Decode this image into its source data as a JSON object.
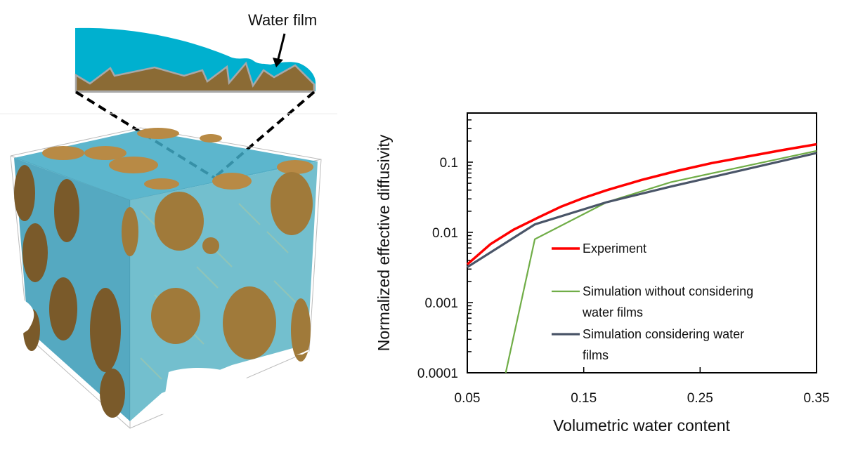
{
  "illustration": {
    "callout_label": "Water film",
    "colors": {
      "water": "#00b0cf",
      "solid": "#8b6b35",
      "solid_outline": "#a8a8a8",
      "grain": "#b88a45",
      "grain_dark": "#7a5a2a",
      "pore_film": "#3aa8c8"
    }
  },
  "chart_data": {
    "type": "line",
    "title": "",
    "xlabel": "Volumetric water content",
    "ylabel": "Normalized effective diffusivity",
    "xlim": [
      0.05,
      0.35
    ],
    "ylim": [
      0.0001,
      0.5
    ],
    "yscale": "log",
    "x_ticks": [
      "0.05",
      "0.15",
      "0.25",
      "0.35"
    ],
    "y_ticks": [
      "0.0001",
      "0.001",
      "0.01",
      "0.1"
    ],
    "grid": false,
    "legend_position": "inside-lower-right",
    "series": [
      {
        "name": "Experiment",
        "color": "#ff0000",
        "x": [
          0.05,
          0.07,
          0.09,
          0.11,
          0.13,
          0.15,
          0.17,
          0.2,
          0.23,
          0.26,
          0.29,
          0.32,
          0.35
        ],
        "y": [
          0.0035,
          0.0068,
          0.011,
          0.016,
          0.023,
          0.031,
          0.04,
          0.056,
          0.075,
          0.097,
          0.12,
          0.148,
          0.18
        ]
      },
      {
        "name": "Simulation without considering water films",
        "color": "#70ad47",
        "x": [
          0.083,
          0.108,
          0.17,
          0.225,
          0.35
        ],
        "y": [
          0.0001,
          0.008,
          0.027,
          0.052,
          0.145
        ]
      },
      {
        "name": "Simulation considering water films",
        "color": "#4a5568",
        "x": [
          0.05,
          0.108,
          0.17,
          0.225,
          0.35
        ],
        "y": [
          0.0032,
          0.013,
          0.027,
          0.045,
          0.135
        ]
      }
    ]
  }
}
